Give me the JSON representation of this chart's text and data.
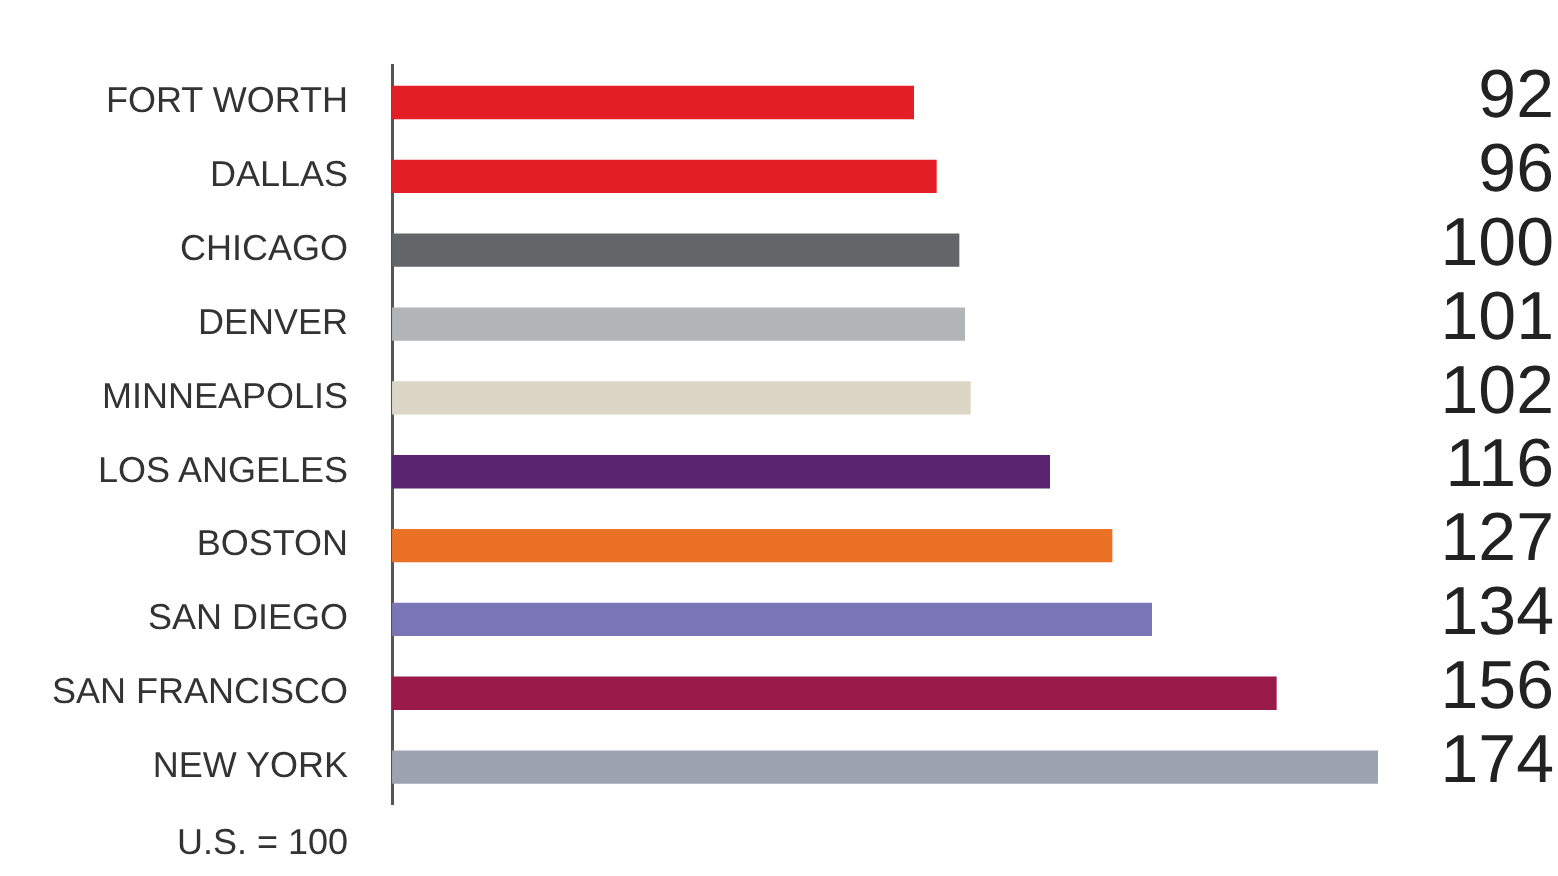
{
  "chart_data": {
    "type": "bar",
    "orientation": "horizontal",
    "categories": [
      "FORT WORTH",
      "DALLAS",
      "CHICAGO",
      "DENVER",
      "MINNEAPOLIS",
      "LOS ANGELES",
      "BOSTON",
      "SAN DIEGO",
      "SAN FRANCISCO",
      "NEW YORK"
    ],
    "values": [
      92,
      96,
      100,
      101,
      102,
      116,
      127,
      134,
      156,
      174
    ],
    "colors": [
      "#e31e24",
      "#e31e24",
      "#636569",
      "#b3b4b6",
      "#dcd6c6",
      "#5a2470",
      "#ea7125",
      "#7a75b5",
      "#9a1a48",
      "#9ea3b2"
    ],
    "xlim": [
      0,
      174
    ],
    "data_labels": true,
    "legend": false,
    "annotations": [
      "U.S. = 100"
    ]
  }
}
